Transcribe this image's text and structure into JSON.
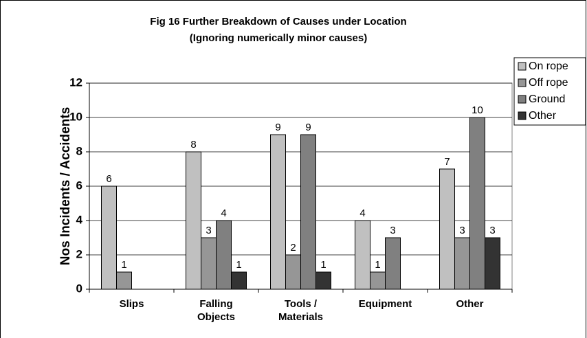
{
  "chart_data": {
    "type": "bar",
    "title": [
      "Fig 16  Further Breakdown of Causes under Location",
      "(Ignoring numerically minor causes)"
    ],
    "y_label": "Nos Incidents / Accidents",
    "categories": [
      "Slips",
      "Falling Objects",
      "Tools / Materials",
      "Equipment",
      "Other"
    ],
    "series": [
      {
        "name": "On rope",
        "color": "#c0c0c0",
        "values": [
          6,
          8,
          9,
          4,
          7
        ]
      },
      {
        "name": "Off rope",
        "color": "#969696",
        "values": [
          1,
          3,
          2,
          1,
          3
        ]
      },
      {
        "name": "Ground",
        "color": "#808080",
        "values": [
          null,
          4,
          9,
          3,
          10
        ]
      },
      {
        "name": "Other",
        "color": "#333333",
        "values": [
          null,
          1,
          1,
          null,
          3
        ]
      }
    ],
    "ylim": [
      0,
      12
    ],
    "yticks": [
      0,
      2,
      4,
      6,
      8,
      10,
      12
    ],
    "grid": true,
    "legend": "top-right"
  }
}
